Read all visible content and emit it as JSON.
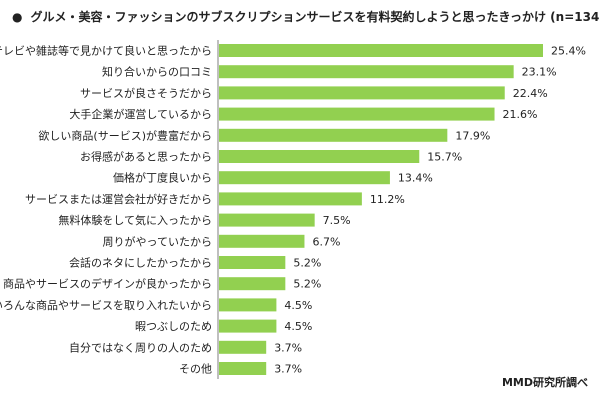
{
  "page": {
    "title_bullet": "●",
    "title": "グルメ・美容・ファッションのサブスクリプションサービスを有料契約しようと思ったきっかけ (n=134)",
    "source": "MMD研究所調べ"
  },
  "colors": {
    "bar": "#92D050",
    "text": "#222222",
    "axis": "#7F7F7F"
  },
  "chart_data": {
    "type": "bar",
    "orientation": "horizontal",
    "title": "グルメ・美容・ファッションのサブスクリプションサービスを有料契約しようと思ったきっかけ (n=134)",
    "xlabel": "",
    "ylabel": "",
    "xlim": [
      0,
      25.4
    ],
    "unit": "%",
    "grid": false,
    "legend": "none",
    "categories": [
      "テレビや雑誌等で見かけて良いと思ったから",
      "知り合いからの口コミ",
      "サービスが良さそうだから",
      "大手企業が運営しているから",
      "欲しい商品(サービス)が豊富だから",
      "お得感があると思ったから",
      "価格が丁度良いから",
      "サービスまたは運営会社が好きだから",
      "無料体験をして気に入ったから",
      "周りがやっていたから",
      "会話のネタにしたかったから",
      "商品やサービスのデザインが良かったから",
      "いろんな商品やサービスを取り入れたいから",
      "暇つぶしのため",
      "自分ではなく周りの人のため",
      "その他"
    ],
    "values": [
      25.4,
      23.1,
      22.4,
      21.6,
      17.9,
      15.7,
      13.4,
      11.2,
      7.5,
      6.7,
      5.2,
      5.2,
      4.5,
      4.5,
      3.7,
      3.7
    ],
    "value_labels": [
      "25.4%",
      "23.1%",
      "22.4%",
      "21.6%",
      "17.9%",
      "15.7%",
      "13.4%",
      "11.2%",
      "7.5%",
      "6.7%",
      "5.2%",
      "5.2%",
      "4.5%",
      "4.5%",
      "3.7%",
      "3.7%"
    ]
  }
}
